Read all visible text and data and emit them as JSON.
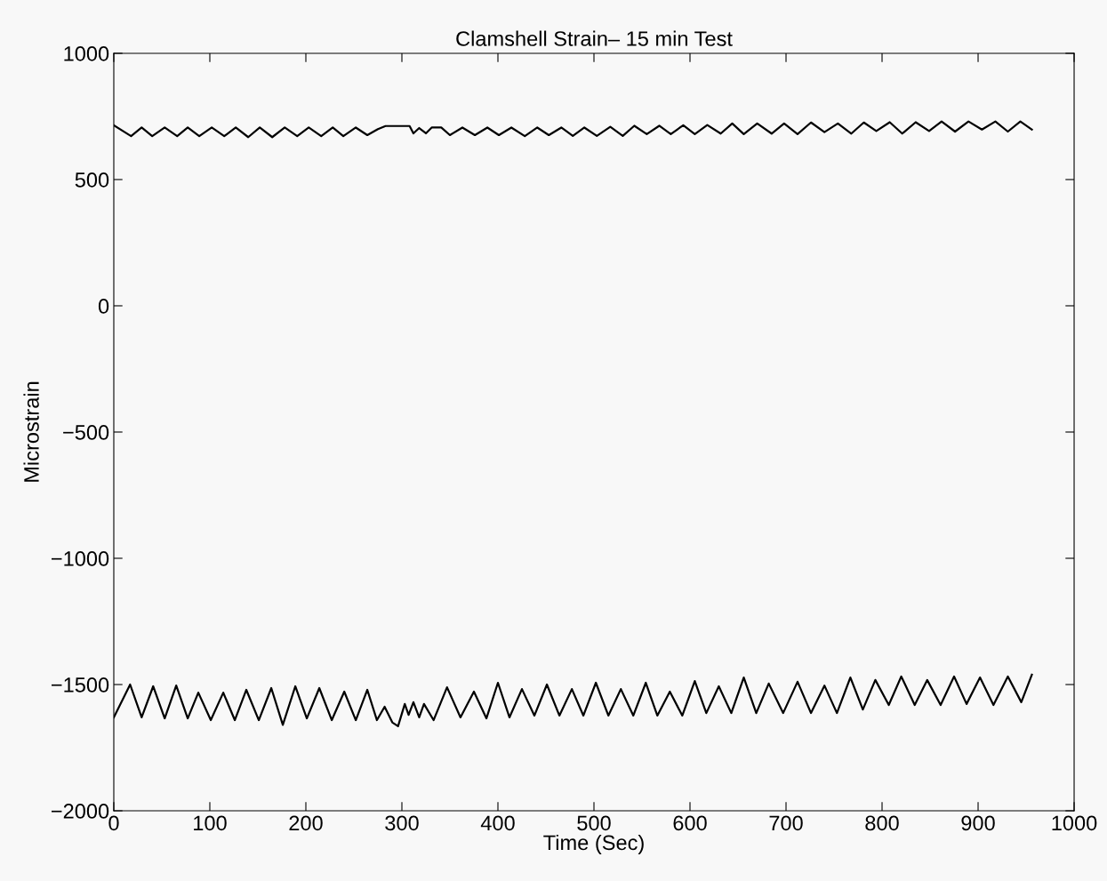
{
  "chart_data": {
    "type": "line",
    "title": "Clamshell Strain– 15 min Test",
    "xlabel": "Time (Sec)",
    "ylabel": "Microstrain",
    "xlim": [
      0,
      1000
    ],
    "xticks": [
      0,
      100,
      200,
      300,
      400,
      500,
      600,
      700,
      800,
      900,
      1000
    ],
    "ylim": [
      -2000,
      1000
    ],
    "yticks": [
      -2000,
      -1500,
      -1000,
      -500,
      0,
      500,
      1000
    ],
    "grid": false,
    "legend": false,
    "marker": "none",
    "line_style": "solid",
    "series": [
      {
        "color": "#000000",
        "x": [
          0,
          18,
          29,
          40,
          53,
          66,
          77,
          89,
          102,
          115,
          127,
          140,
          152,
          165,
          178,
          191,
          203,
          216,
          228,
          239,
          252,
          264,
          275,
          283,
          308,
          312,
          318,
          325,
          331,
          341,
          350,
          363,
          376,
          389,
          401,
          414,
          428,
          441,
          453,
          466,
          478,
          490,
          503,
          517,
          530,
          542,
          555,
          568,
          580,
          593,
          605,
          618,
          632,
          644,
          656,
          670,
          685,
          698,
          712,
          726,
          740,
          754,
          768,
          781,
          794,
          808,
          821,
          835,
          849,
          862,
          876,
          890,
          904,
          918,
          931,
          944,
          956
        ],
        "values": [
          715,
          672,
          706,
          672,
          706,
          672,
          706,
          672,
          706,
          672,
          706,
          668,
          706,
          668,
          706,
          672,
          706,
          672,
          706,
          672,
          706,
          676,
          700,
          712,
          712,
          683,
          704,
          683,
          706,
          706,
          676,
          706,
          676,
          706,
          676,
          706,
          672,
          706,
          676,
          706,
          673,
          706,
          673,
          709,
          673,
          713,
          680,
          713,
          680,
          715,
          680,
          716,
          682,
          722,
          680,
          722,
          682,
          722,
          680,
          726,
          688,
          722,
          682,
          726,
          692,
          727,
          682,
          727,
          692,
          730,
          690,
          730,
          698,
          730,
          690,
          730,
          698
        ]
      },
      {
        "color": "#000000",
        "x": [
          0,
          17,
          29,
          41,
          53,
          65,
          77,
          88,
          101,
          114,
          126,
          138,
          151,
          164,
          176,
          189,
          201,
          214,
          227,
          240,
          252,
          264,
          274,
          282,
          290,
          296,
          303,
          307,
          312,
          318,
          323,
          333,
          347,
          361,
          375,
          388,
          400,
          412,
          425,
          438,
          451,
          464,
          477,
          489,
          502,
          515,
          528,
          541,
          554,
          566,
          579,
          592,
          605,
          617,
          630,
          643,
          656,
          669,
          682,
          697,
          712,
          726,
          740,
          753,
          767,
          780,
          793,
          807,
          820,
          834,
          847,
          861,
          875,
          888,
          902,
          916,
          931,
          945,
          956
        ],
        "values": [
          -1630,
          -1500,
          -1630,
          -1507,
          -1634,
          -1504,
          -1634,
          -1532,
          -1641,
          -1532,
          -1641,
          -1521,
          -1641,
          -1514,
          -1660,
          -1507,
          -1634,
          -1514,
          -1641,
          -1528,
          -1641,
          -1521,
          -1641,
          -1588,
          -1650,
          -1665,
          -1577,
          -1620,
          -1570,
          -1630,
          -1577,
          -1641,
          -1511,
          -1630,
          -1528,
          -1634,
          -1493,
          -1630,
          -1518,
          -1623,
          -1500,
          -1623,
          -1518,
          -1623,
          -1493,
          -1623,
          -1518,
          -1623,
          -1493,
          -1623,
          -1528,
          -1623,
          -1486,
          -1613,
          -1507,
          -1613,
          -1472,
          -1613,
          -1496,
          -1613,
          -1489,
          -1613,
          -1504,
          -1613,
          -1472,
          -1599,
          -1482,
          -1581,
          -1468,
          -1581,
          -1482,
          -1581,
          -1468,
          -1577,
          -1472,
          -1581,
          -1468,
          -1570,
          -1461
        ]
      }
    ]
  }
}
